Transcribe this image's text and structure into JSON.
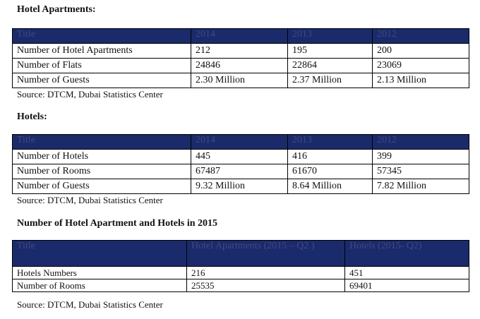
{
  "section1": {
    "heading": "Hotel Apartments:",
    "columns": [
      "Title",
      "2014",
      "2013",
      "2012"
    ],
    "rows": [
      [
        "Number of Hotel Apartments",
        "212",
        "195",
        "200"
      ],
      [
        "Number of Flats",
        "24846",
        "22864",
        "23069"
      ],
      [
        "Number of Guests",
        "2.30 Million",
        "2.37 Million",
        "2.13 Million"
      ]
    ],
    "source": "Source: DTCM, Dubai Statistics Center"
  },
  "section2": {
    "heading": "Hotels:",
    "columns": [
      "Title",
      "2014",
      "2013",
      "2012"
    ],
    "rows": [
      [
        "Number of Hotels",
        "445",
        "416",
        "399"
      ],
      [
        "Number of Rooms",
        "67487",
        "61670",
        "57345"
      ],
      [
        "Number of Guests",
        "9.32 Million",
        "8.64 Million",
        "7.82 Million"
      ]
    ],
    "source": "Source: DTCM, Dubai Statistics Center"
  },
  "section3": {
    "heading": "Number of Hotel Apartment and Hotels in 2015",
    "columns": [
      "Title",
      "Hotel Apartments (2015 – Q2 )",
      "Hotels (2015- Q2)"
    ],
    "rows": [
      [
        "Hotels Numbers",
        "216",
        "451"
      ],
      [
        "Number of Rooms",
        "25535",
        "69401"
      ]
    ],
    "source": "Source: DTCM, Dubai Statistics Center"
  }
}
